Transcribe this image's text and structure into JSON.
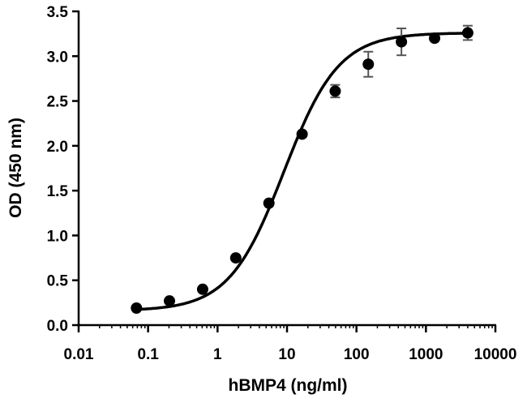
{
  "chart_data": {
    "type": "scatter",
    "title": "",
    "xlabel": "hBMP4 (ng/ml)",
    "ylabel": "OD (450 nm)",
    "xscale": "log",
    "xlim": [
      0.01,
      10000
    ],
    "ylim": [
      0,
      3.5
    ],
    "xticks": [
      "0.01",
      "0.1",
      "1",
      "10",
      "100",
      "1000",
      "10000"
    ],
    "yticks": [
      "0.0",
      "0.5",
      "1.0",
      "1.5",
      "2.0",
      "2.5",
      "3.0",
      "3.5"
    ],
    "grid": false,
    "legend": "none",
    "fit_curve": "sigmoidal",
    "color": "#000000",
    "series": [
      {
        "x": [
          0.068,
          0.203,
          0.61,
          1.83,
          5.49,
          16.5,
          49.4,
          148,
          444,
          1333,
          4000
        ],
        "y": [
          0.19,
          0.27,
          0.4,
          0.75,
          1.36,
          2.13,
          2.61,
          2.91,
          3.16,
          3.2,
          3.26
        ],
        "error": [
          0.02,
          0.02,
          0.02,
          0.02,
          0.02,
          0.02,
          0.07,
          0.14,
          0.15,
          0.03,
          0.08
        ]
      }
    ]
  }
}
